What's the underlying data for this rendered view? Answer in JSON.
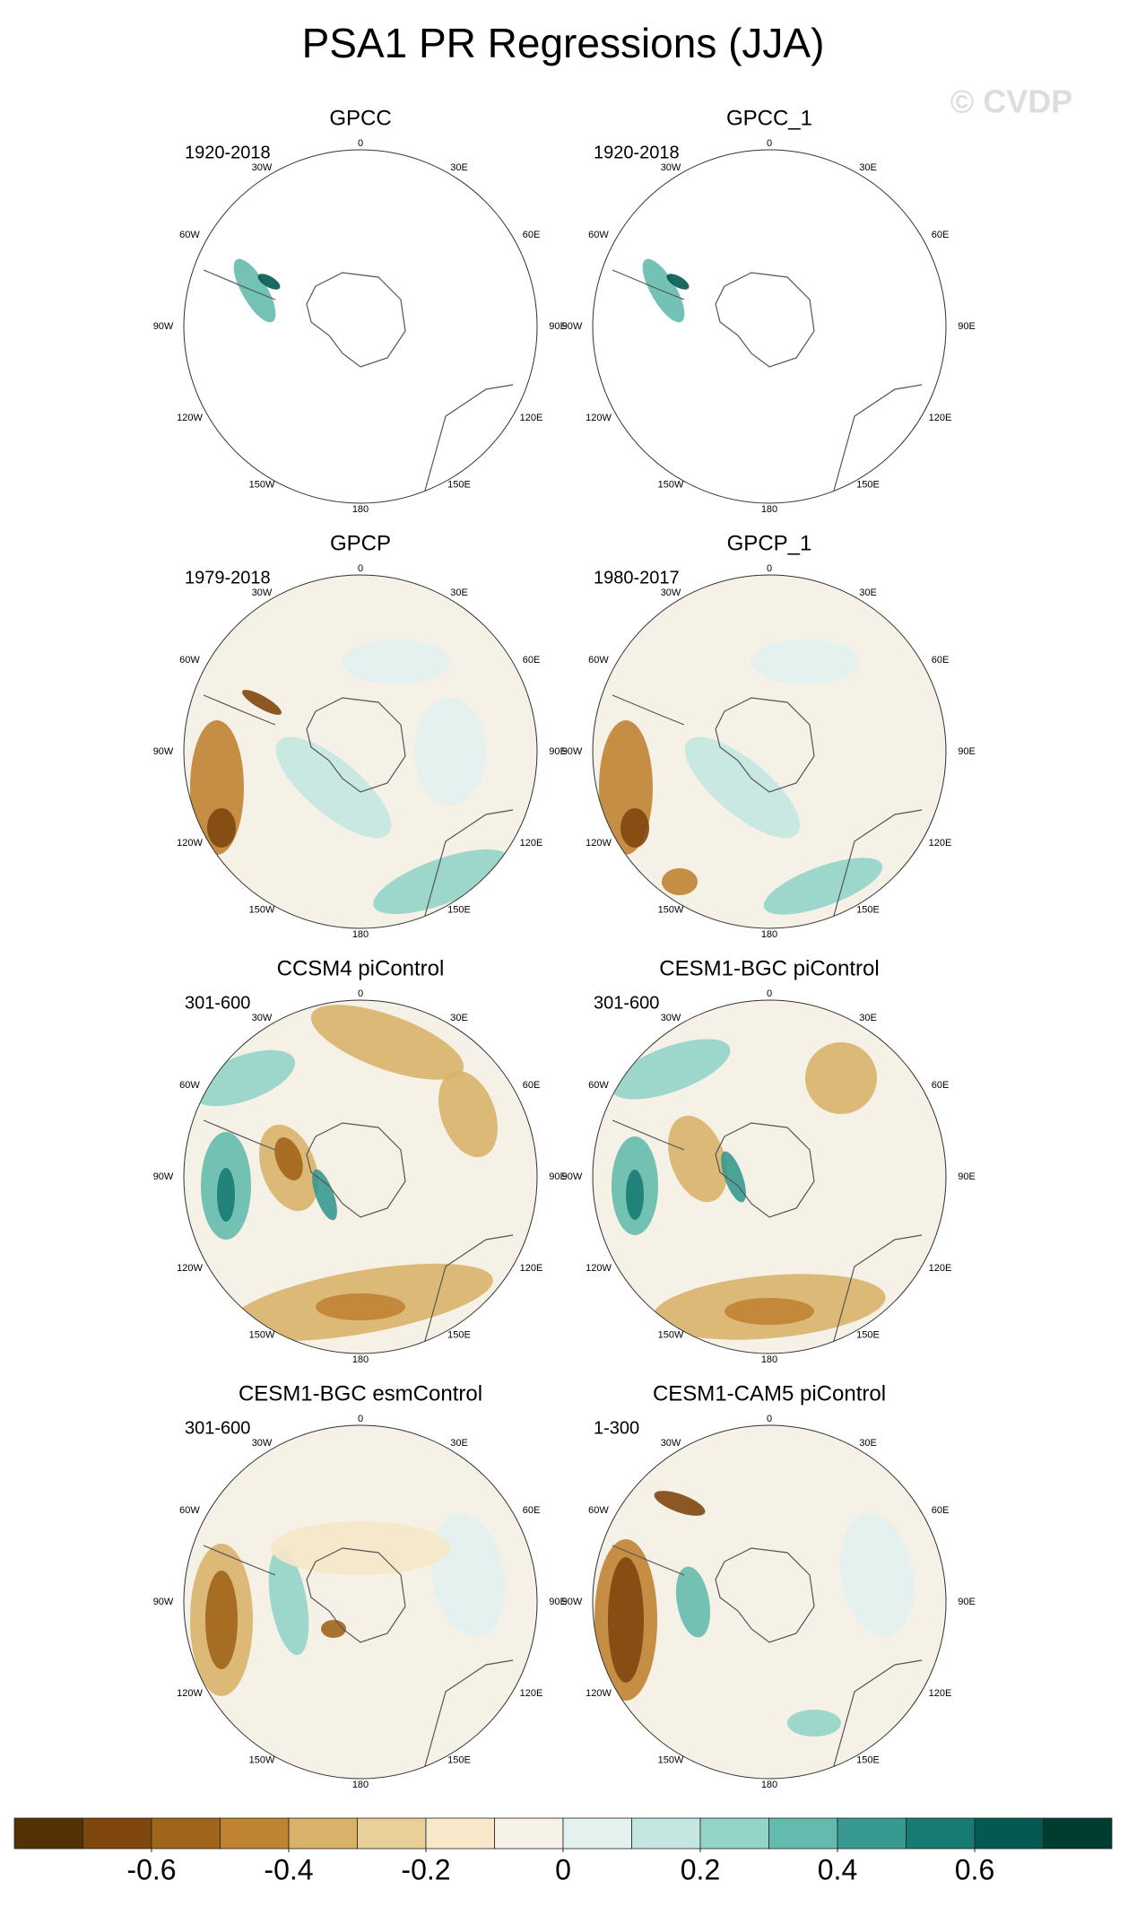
{
  "title": "PSA1 PR Regressions (JJA)",
  "watermark": "© CVDP",
  "longitude_labels": [
    "0",
    "30E",
    "60E",
    "90E",
    "120E",
    "150E",
    "180",
    "150W",
    "120W",
    "90W",
    "60W",
    "30W"
  ],
  "panels": [
    {
      "title": "GPCC",
      "period": "1920-2018"
    },
    {
      "title": "GPCC_1",
      "period": "1920-2018"
    },
    {
      "title": "GPCP",
      "period": "1979-2018"
    },
    {
      "title": "GPCP_1",
      "period": "1980-2017"
    },
    {
      "title": "CCSM4 piControl",
      "period": "301-600"
    },
    {
      "title": "CESM1-BGC piControl",
      "period": "301-600"
    },
    {
      "title": "CESM1-BGC esmControl",
      "period": "301-600"
    },
    {
      "title": "CESM1-CAM5 piControl",
      "period": "1-300"
    }
  ],
  "colorbar": {
    "lim": [
      -0.8,
      0.8
    ],
    "ticks": [
      -0.6,
      -0.4,
      -0.2,
      0,
      0.2,
      0.4,
      0.6
    ],
    "colors": [
      "#543005",
      "#7f470e",
      "#a0651a",
      "#c08332",
      "#d9b26a",
      "#e9cf98",
      "#f6e8c8",
      "#f5f1e7",
      "#e3f1ef",
      "#c3e7e0",
      "#94d3c7",
      "#64bbad",
      "#37998f",
      "#187b73",
      "#025a50",
      "#003c30"
    ]
  }
}
